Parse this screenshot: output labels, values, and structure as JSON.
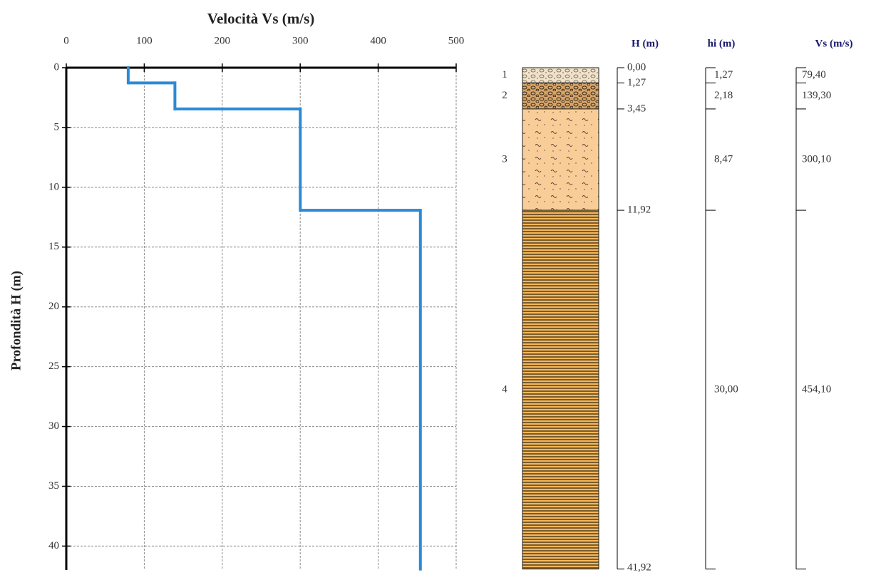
{
  "chart_data": {
    "type": "step",
    "title": "Velocità Vs (m/s)",
    "y_label": "Profondità H (m)",
    "xlim": [
      0,
      500
    ],
    "xticks": [
      0,
      100,
      200,
      300,
      400,
      500
    ],
    "ylim": [
      0,
      42
    ],
    "yticks": [
      0,
      5,
      10,
      15,
      20,
      25,
      30,
      35,
      40
    ],
    "y_inverted": true,
    "grid": true,
    "color": "#2b8ad6",
    "depths": [
      0,
      1.27,
      3.45,
      11.92,
      41.92
    ],
    "depth_labels": [
      "0,00",
      "1,27",
      "3,45",
      "11,92",
      "41,92"
    ],
    "velocities": [
      79.4,
      139.3,
      300.1,
      454.1
    ],
    "velocity_labels": [
      "79,40",
      "139,30",
      "300,10",
      "454,10"
    ],
    "thicknesses": [
      1.27,
      2.18,
      8.47,
      30
    ],
    "thickness_labels": [
      "1,27",
      "2,18",
      "8,47",
      "30,00"
    ],
    "layers": [
      "1",
      "2",
      "3",
      "4"
    ],
    "column_headers": [
      "H (m)",
      "hi (m)",
      "Vs (m/s)"
    ]
  }
}
